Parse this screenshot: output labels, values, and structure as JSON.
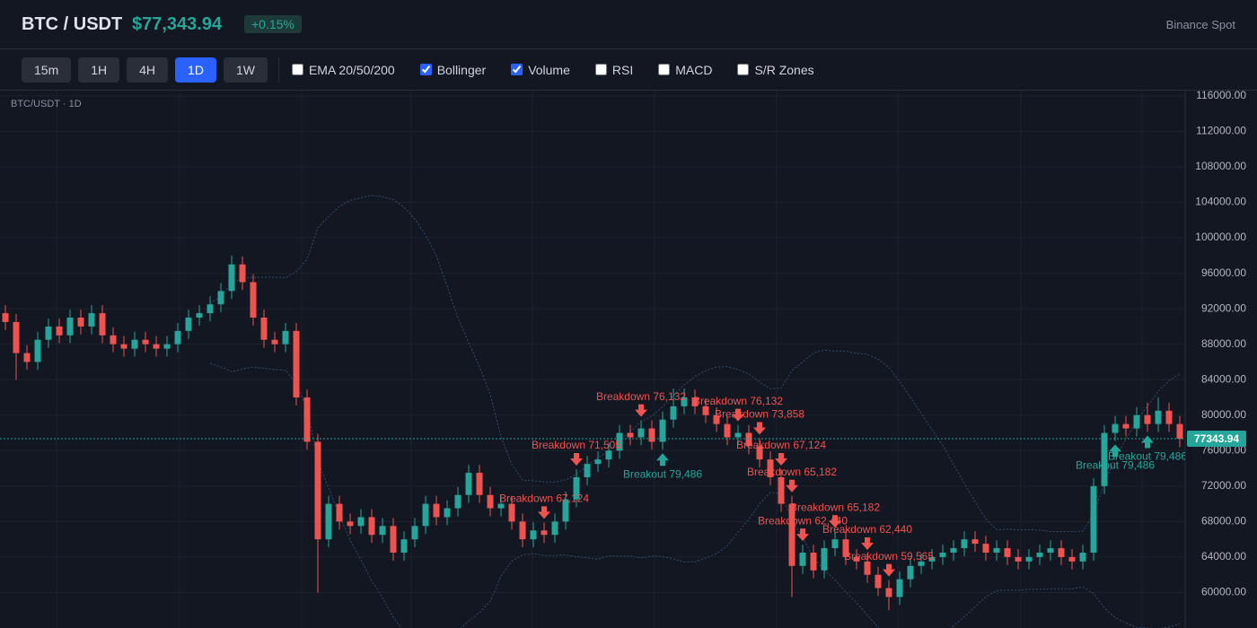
{
  "header": {
    "symbol": "BTC / USDT",
    "price": "$77,343.94",
    "change": "+0.15%",
    "exchange": "Binance Spot"
  },
  "toolbar": {
    "timeframes": [
      "15m",
      "1H",
      "4H",
      "1D",
      "1W"
    ],
    "active_timeframe": "1D",
    "indicators": [
      {
        "label": "EMA 20/50/200",
        "checked": false
      },
      {
        "label": "Bollinger",
        "checked": true
      },
      {
        "label": "Volume",
        "checked": true
      },
      {
        "label": "RSI",
        "checked": false
      },
      {
        "label": "MACD",
        "checked": false
      },
      {
        "label": "S/R Zones",
        "checked": false
      }
    ]
  },
  "chart_data": {
    "type": "candlestick",
    "label": "BTC/USDT · 1D",
    "open": [
      91500,
      90500,
      87000,
      86000,
      88500,
      90000,
      89000,
      91000,
      90000,
      91500,
      89000,
      88000,
      87500,
      88500,
      88000,
      87500,
      88000,
      89500,
      91000,
      91500,
      92500,
      94000,
      97000,
      95000,
      91000,
      88500,
      88000,
      89500,
      82000,
      77000,
      66000,
      70000,
      68000,
      67500,
      68500,
      66500,
      67500,
      64500,
      66000,
      67500,
      70000,
      68500,
      69500,
      71000,
      73500,
      71000,
      69500,
      70000,
      68000,
      66000,
      67000,
      66500,
      68000,
      70500,
      73000,
      74500,
      75000,
      76000,
      78000,
      77500,
      78500,
      77000,
      79500,
      81000,
      82000,
      81000,
      80000,
      79000,
      77500,
      78000,
      76500,
      75000,
      73000,
      70000,
      63000,
      64500,
      62500,
      65000,
      66000,
      64000,
      63500,
      62000,
      60500,
      59500,
      61500,
      63000,
      63500,
      64000,
      64500,
      65000,
      66000,
      65500,
      64500,
      65000,
      64000,
      63500,
      64000,
      64500,
      65000,
      64000,
      63500,
      64500,
      72000,
      78000,
      79000,
      78500,
      80000,
      79000,
      80500,
      79000
    ],
    "high": [
      92400,
      91400,
      87900,
      89400,
      90900,
      90900,
      91900,
      91900,
      92400,
      92400,
      89900,
      88900,
      89400,
      89400,
      88900,
      88900,
      90400,
      91900,
      92400,
      93400,
      94900,
      98000,
      97900,
      95900,
      91900,
      89400,
      90400,
      90400,
      82900,
      77900,
      70900,
      70900,
      68900,
      69400,
      69400,
      68400,
      68400,
      66900,
      68400,
      70900,
      70900,
      70400,
      71900,
      74400,
      74400,
      71900,
      70900,
      70900,
      68900,
      67900,
      67900,
      68900,
      71400,
      73900,
      75400,
      75900,
      76900,
      78900,
      78900,
      79400,
      79400,
      80400,
      83000,
      83000,
      82900,
      81900,
      80900,
      79900,
      78900,
      78900,
      77400,
      75900,
      73900,
      70900,
      65400,
      65400,
      65900,
      66900,
      66900,
      64900,
      64400,
      62900,
      61400,
      62400,
      63900,
      64400,
      64900,
      65400,
      65900,
      66900,
      66900,
      66400,
      65900,
      65900,
      64900,
      64900,
      65400,
      65900,
      65900,
      64900,
      65400,
      72900,
      78900,
      79900,
      79900,
      80900,
      81400,
      82000,
      81400,
      79900
    ],
    "low": [
      89600,
      84000,
      85100,
      85100,
      87600,
      88100,
      88100,
      89100,
      89100,
      88100,
      87100,
      86600,
      86600,
      87100,
      86600,
      86600,
      87100,
      88600,
      90100,
      90600,
      91600,
      93100,
      94100,
      90100,
      87600,
      87100,
      87100,
      81100,
      76100,
      60000,
      65100,
      67100,
      66600,
      66600,
      65600,
      65600,
      63600,
      63600,
      65100,
      66600,
      67600,
      67600,
      68600,
      70100,
      70100,
      68600,
      68600,
      67100,
      65100,
      65100,
      65600,
      65600,
      67100,
      69600,
      72100,
      73600,
      74100,
      75100,
      76600,
      76600,
      76100,
      76100,
      78600,
      80100,
      80100,
      79100,
      78100,
      76600,
      76600,
      75600,
      74100,
      72100,
      69100,
      59500,
      62100,
      61600,
      61600,
      64100,
      63100,
      62600,
      61100,
      59600,
      58000,
      58600,
      60600,
      62100,
      62600,
      63100,
      63600,
      64100,
      64600,
      63600,
      63600,
      63100,
      62600,
      62600,
      63100,
      63600,
      63100,
      62600,
      62600,
      63600,
      71100,
      77100,
      77600,
      77600,
      78100,
      78100,
      78100,
      76400
    ],
    "close": [
      90500,
      87000,
      86000,
      88500,
      90000,
      89000,
      91000,
      90000,
      91500,
      89000,
      88000,
      87500,
      88500,
      88000,
      87500,
      88000,
      89500,
      91000,
      91500,
      92500,
      94000,
      97000,
      95000,
      91000,
      88500,
      88000,
      89500,
      82000,
      77000,
      66000,
      70000,
      68000,
      67500,
      68500,
      66500,
      67500,
      64500,
      66000,
      67500,
      70000,
      68500,
      69500,
      71000,
      73500,
      71000,
      69500,
      70000,
      68000,
      66000,
      67000,
      66500,
      68000,
      70500,
      73000,
      74500,
      75000,
      76000,
      78000,
      77500,
      78500,
      77000,
      79500,
      81000,
      82000,
      81000,
      80000,
      79000,
      77500,
      78000,
      76500,
      75000,
      73000,
      70000,
      63000,
      64500,
      62500,
      65000,
      66000,
      64000,
      63500,
      62000,
      60500,
      59500,
      61500,
      63000,
      63500,
      64000,
      64500,
      65000,
      66000,
      65500,
      64500,
      65000,
      64000,
      63500,
      64000,
      64500,
      65000,
      64000,
      63500,
      64500,
      72000,
      78000,
      79000,
      78500,
      80000,
      79000,
      80500,
      79000,
      77343.94
    ],
    "ylim": [
      56000,
      117000
    ],
    "yticks": [
      {
        "value": 60000,
        "label": "60000.00"
      },
      {
        "value": 64000,
        "label": "64000.00"
      },
      {
        "value": 68000,
        "label": "68000.00"
      },
      {
        "value": 72000,
        "label": "72000.00"
      },
      {
        "value": 76000,
        "label": "76000.00"
      },
      {
        "value": 80000,
        "label": "80000.00"
      },
      {
        "value": 84000,
        "label": "84000.00"
      },
      {
        "value": 88000,
        "label": "88000.00"
      },
      {
        "value": 92000,
        "label": "92000.00"
      },
      {
        "value": 96000,
        "label": "96000.00"
      },
      {
        "value": 100000,
        "label": "100000.00"
      },
      {
        "value": 104000,
        "label": "104000.00"
      },
      {
        "value": 108000,
        "label": "108000.00"
      },
      {
        "value": 112000,
        "label": "112000.00"
      },
      {
        "value": 116000,
        "label": "116000.00"
      }
    ],
    "grid": true,
    "up_color": "#26a69a",
    "down_color": "#ef5350",
    "last_price": {
      "value": 77343.94,
      "label": "77343.94"
    },
    "annotations": [
      {
        "text": "Breakdown 67,124",
        "candle": 50,
        "kind": "breakdown"
      },
      {
        "text": "Breakdown 71,505",
        "candle": 53,
        "kind": "breakdown"
      },
      {
        "text": "Breakdown 76,132",
        "candle": 59,
        "kind": "breakdown"
      },
      {
        "text": "Breakout 79,486",
        "candle": 61,
        "kind": "breakout"
      },
      {
        "text": "Breakdown 76,132",
        "candle": 68,
        "kind": "breakdown"
      },
      {
        "text": "Breakdown 73,858",
        "candle": 70,
        "kind": "breakdown"
      },
      {
        "text": "Breakdown 67,124",
        "candle": 72,
        "kind": "breakdown"
      },
      {
        "text": "Breakdown 65,182",
        "candle": 73,
        "kind": "breakdown"
      },
      {
        "text": "Breakdown 62,440",
        "candle": 74,
        "kind": "breakdown"
      },
      {
        "text": "Breakdown 65,182",
        "candle": 77,
        "kind": "breakdown"
      },
      {
        "text": "Breakdown 62,440",
        "candle": 80,
        "kind": "breakdown"
      },
      {
        "text": "Breakdown 59,565",
        "candle": 82,
        "kind": "breakdown"
      },
      {
        "text": "Breakout 79,486",
        "candle": 103,
        "kind": "breakout"
      },
      {
        "text": "Breakout 79,486",
        "candle": 106,
        "kind": "breakout"
      }
    ]
  }
}
